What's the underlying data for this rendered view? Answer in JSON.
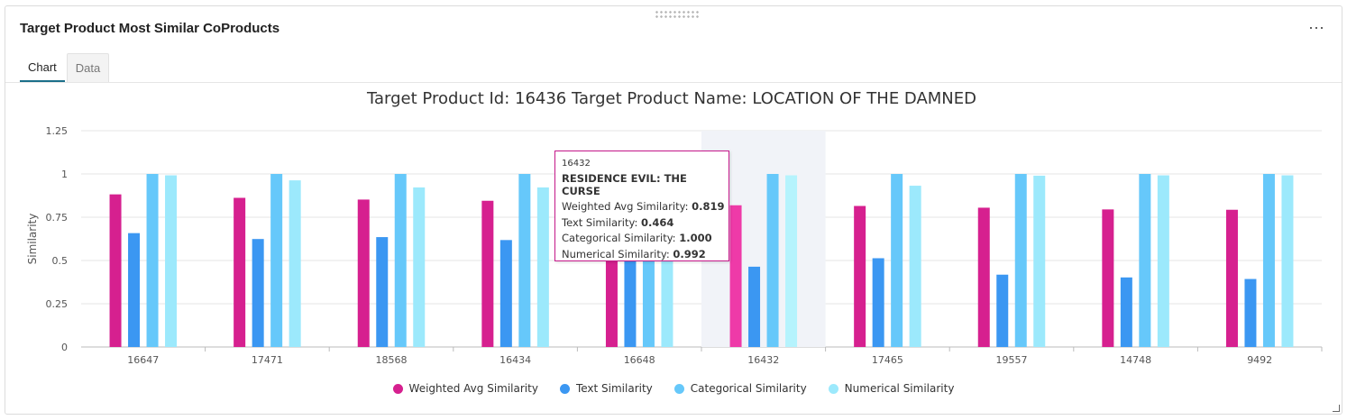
{
  "panel": {
    "title": "Target Product Most Similar CoProducts",
    "more_label": "⋯",
    "tabs": [
      {
        "label": "Chart",
        "active": true
      },
      {
        "label": "Data",
        "active": false
      }
    ]
  },
  "chart_data": {
    "type": "bar",
    "title": "Target Product Id: 16436 Target Product Name: LOCATION OF THE DAMNED",
    "xlabel": "",
    "ylabel": "Similarity",
    "ylim": [
      0,
      1.25
    ],
    "yticks": [
      0,
      0.25,
      0.5,
      0.75,
      1,
      1.25
    ],
    "ytick_labels": [
      "0",
      "0.25",
      "0.5",
      "0.75",
      "1",
      "1.25"
    ],
    "grid": true,
    "legend_position": "bottom-center",
    "categories": [
      "16647",
      "17471",
      "18568",
      "16434",
      "16648",
      "16432",
      "17465",
      "19557",
      "14748",
      "9492"
    ],
    "series": [
      {
        "name": "Weighted Avg Similarity",
        "color": "#d6208f",
        "values": [
          0.882,
          0.862,
          0.852,
          0.845,
          0.822,
          0.819,
          0.815,
          0.805,
          0.795,
          0.793
        ]
      },
      {
        "name": "Text Similarity",
        "color": "#3b97f2",
        "values": [
          0.658,
          0.624,
          0.635,
          0.618,
          0.535,
          0.464,
          0.513,
          0.418,
          0.402,
          0.393
        ]
      },
      {
        "name": "Categorical Similarity",
        "color": "#66c8fa",
        "values": [
          1.0,
          1.0,
          1.0,
          1.0,
          1.0,
          1.0,
          1.0,
          1.0,
          1.0,
          1.0
        ]
      },
      {
        "name": "Numerical Similarity",
        "color": "#9ce9fc",
        "values": [
          0.992,
          0.963,
          0.922,
          0.922,
          0.96,
          0.992,
          0.932,
          0.99,
          0.992,
          0.992
        ]
      }
    ],
    "highlight_category": "16432",
    "tooltip": {
      "id": "16432",
      "name": "RESIDENCE EVIL: THE CURSE",
      "rows": [
        {
          "label": "Weighted Avg Similarity:",
          "value": "0.819"
        },
        {
          "label": "Text Similarity:",
          "value": "0.464"
        },
        {
          "label": "Categorical Similarity:",
          "value": "1.000"
        },
        {
          "label": "Numerical Similarity:",
          "value": "0.992"
        }
      ]
    }
  }
}
